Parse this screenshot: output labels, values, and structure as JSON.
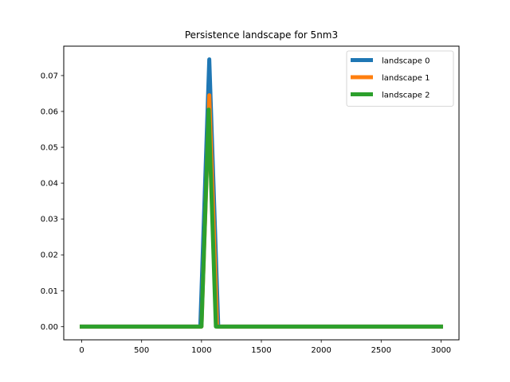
{
  "chart_data": {
    "type": "line",
    "title": "Persistence landscape for 5nm3",
    "xlabel": "",
    "ylabel": "",
    "xlim": [
      -150,
      3150
    ],
    "ylim": [
      -0.0037,
      0.0782
    ],
    "xticks": [
      0,
      500,
      1000,
      1500,
      2000,
      2500,
      3000
    ],
    "xtick_labels": [
      "0",
      "500",
      "1000",
      "1500",
      "2000",
      "2500",
      "3000"
    ],
    "yticks": [
      0.0,
      0.01,
      0.02,
      0.03,
      0.04,
      0.05,
      0.06,
      0.07
    ],
    "ytick_labels": [
      "0.00",
      "0.01",
      "0.02",
      "0.03",
      "0.04",
      "0.05",
      "0.06",
      "0.07"
    ],
    "grid": false,
    "legend_position": "top-right",
    "series": [
      {
        "name": "landscape 0",
        "color": "#1f77b4",
        "x": [
          0,
          990,
          1065,
          1140,
          3000
        ],
        "y": [
          0,
          0,
          0.0745,
          0,
          0
        ]
      },
      {
        "name": "landscape 1",
        "color": "#ff7f0e",
        "x": [
          0,
          1000,
          1065,
          1130,
          3000
        ],
        "y": [
          0,
          0,
          0.0645,
          0,
          0
        ]
      },
      {
        "name": "landscape 2",
        "color": "#2ca02c",
        "x": [
          0,
          1000,
          1060,
          1120,
          3000
        ],
        "y": [
          0,
          0,
          0.0605,
          0,
          0
        ]
      }
    ]
  }
}
